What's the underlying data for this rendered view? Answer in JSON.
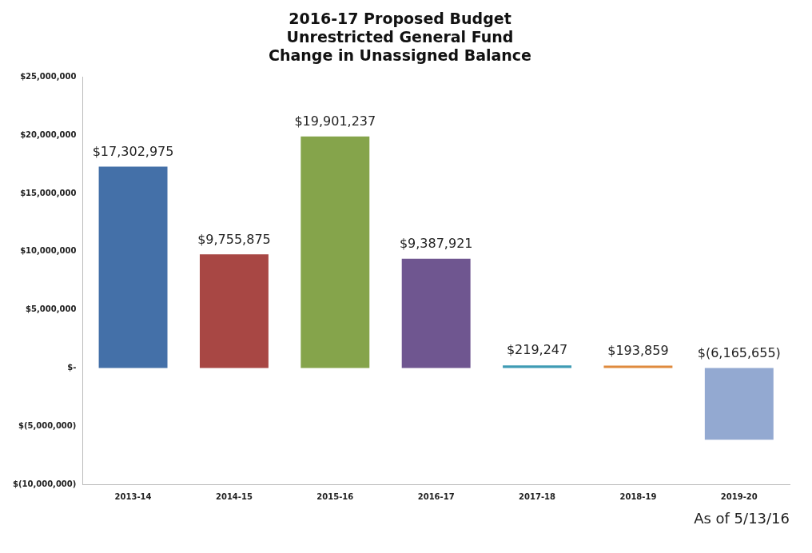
{
  "chart_data": {
    "type": "bar",
    "title": "2016-17 Proposed Budget\nUnrestricted General Fund\nChange in Unassigned Balance",
    "categories": [
      "2013-14",
      "2014-15",
      "2015-16",
      "2016-17",
      "2017-18",
      "2018-19",
      "2019-20"
    ],
    "values": [
      17302975,
      9755875,
      19901237,
      9387921,
      219247,
      193859,
      -6165655
    ],
    "colors": [
      "#4470a8",
      "#a84744",
      "#85a44b",
      "#6f5690",
      "#3f9bb4",
      "#df8a3d",
      "#93a9d1"
    ],
    "value_labels": [
      "$17,302,975",
      "$9,755,875",
      "$19,901,237",
      "$9,387,921",
      "$219,247",
      "$193,859",
      "$(6,165,655)"
    ],
    "ylim": [
      -10000000,
      25000000
    ],
    "yticks": [
      {
        "value": -10000000,
        "label": "$(10,000,000)"
      },
      {
        "value": -5000000,
        "label": "$(5,000,000)"
      },
      {
        "value": 0,
        "label": "$-"
      },
      {
        "value": 5000000,
        "label": "$5,000,000"
      },
      {
        "value": 10000000,
        "label": "$10,000,000"
      },
      {
        "value": 15000000,
        "label": "$15,000,000"
      },
      {
        "value": 20000000,
        "label": "$20,000,000"
      },
      {
        "value": 25000000,
        "label": "$25,000,000"
      }
    ],
    "grid": false,
    "legend": false,
    "annotations": [
      "As of 5/13/16"
    ]
  }
}
